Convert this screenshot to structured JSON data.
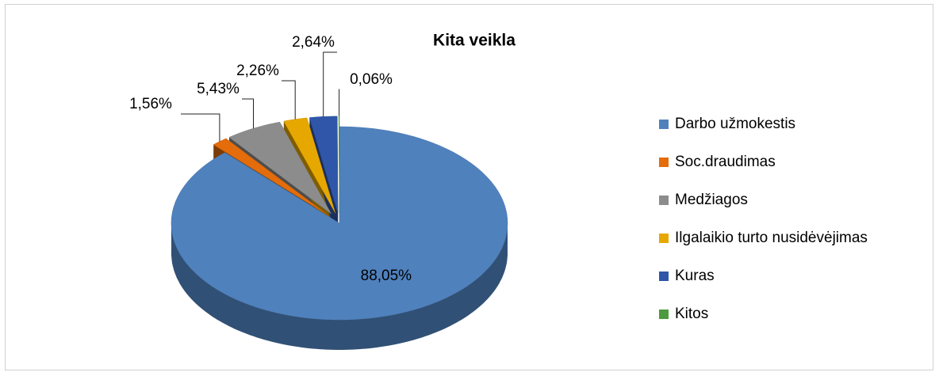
{
  "chart_data": {
    "type": "pie",
    "title": "Kita veikla",
    "categories": [
      "Darbo užmokestis",
      "Soc.draudimas",
      "Medžiagos",
      "Ilgalaikio turto nusidėvėjimas",
      "Kuras",
      "Kitos"
    ],
    "values": [
      88.05,
      1.56,
      5.43,
      2.26,
      2.64,
      0.06
    ],
    "value_labels": [
      "88,05%",
      "1,56%",
      "5,43%",
      "2,26%",
      "2,64%",
      "0,06%"
    ],
    "colors": [
      "#4f81bd",
      "#e46c0a",
      "#8c8c8c",
      "#e6a800",
      "#2f56a8",
      "#4e9a3f"
    ],
    "legend": "right"
  }
}
